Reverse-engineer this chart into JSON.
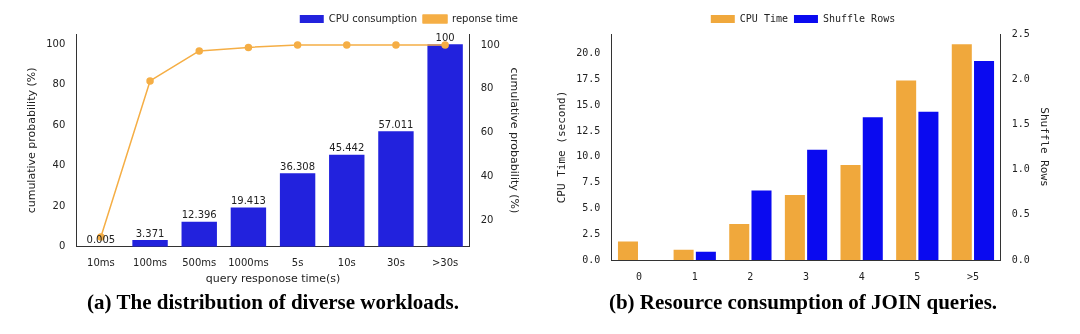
{
  "chart_data": [
    {
      "type": "bar",
      "title": "(a) The distribution of diverse workloads.",
      "xlabel": "query responose time(s)",
      "ylabel": "cumulative probability (%)",
      "y2label": "cumulative probability (%)",
      "categories": [
        "10ms",
        "100ms",
        "500ms",
        "1000ms",
        "5s",
        "10s",
        "30s",
        ">30s"
      ],
      "series": [
        {
          "name": "CPU consumption",
          "color": "#2222dd",
          "values": [
            0.005,
            3.371,
            12.396,
            19.413,
            36.308,
            45.442,
            57.011,
            100
          ],
          "value_labels": [
            "0.005",
            "3.371",
            "12.396",
            "19.413",
            "36.308",
            "45.442",
            "57.011",
            "100"
          ]
        },
        {
          "name": "reponse time",
          "type": "line",
          "axis": "y2",
          "color": "#f5ae45",
          "values": [
            12.5,
            83.6,
            97.3,
            98.9,
            100,
            100,
            100,
            100
          ]
        }
      ],
      "ylim": [
        0,
        105
      ],
      "yticks": [
        0,
        20,
        40,
        60,
        80,
        100
      ],
      "y2lim": [
        8,
        105
      ],
      "y2ticks": [
        20,
        40,
        60,
        80,
        100
      ],
      "marker": "circle",
      "legend": "top right",
      "grid": false
    },
    {
      "type": "bar",
      "title": "(b) Resource consumption of JOIN queries.",
      "ylabel": "CPU Time (second)",
      "y2label": "Shuffle Rows",
      "categories": [
        "0",
        "1",
        "2",
        "3",
        "4",
        "5",
        ">5"
      ],
      "series": [
        {
          "name": "CPU Time",
          "color": "#f0a83c",
          "values": [
            1.8,
            1.0,
            3.5,
            6.3,
            9.2,
            17.4,
            20.9
          ]
        },
        {
          "name": "Shuffle Rows",
          "axis": "y2",
          "color": "#0a0af0",
          "values": [
            null,
            0.09,
            0.77,
            1.22,
            1.58,
            1.64,
            2.2
          ]
        }
      ],
      "ylim": [
        0,
        21.9
      ],
      "yticks": [
        {
          "value": 0,
          "label": "0.0"
        },
        {
          "value": 2.5,
          "label": "2.5"
        },
        {
          "value": 5,
          "label": "5.0"
        },
        {
          "value": 7.5,
          "label": "7.5"
        },
        {
          "value": 10,
          "label": "10.0"
        },
        {
          "value": 12.5,
          "label": "12.5"
        },
        {
          "value": 15,
          "label": "15.0"
        },
        {
          "value": 17.5,
          "label": "17.5"
        },
        {
          "value": 20,
          "label": "20.0"
        }
      ],
      "y2lim": [
        0,
        2.5
      ],
      "y2ticks": [
        {
          "value": 0,
          "label": "0.0"
        },
        {
          "value": 0.5,
          "label": "0.5"
        },
        {
          "value": 1,
          "label": "1.0"
        },
        {
          "value": 1.5,
          "label": "1.5"
        },
        {
          "value": 2,
          "label": "2.0"
        },
        {
          "value": 2.5,
          "label": "2.5"
        }
      ],
      "legend": "top",
      "grid": false
    }
  ]
}
